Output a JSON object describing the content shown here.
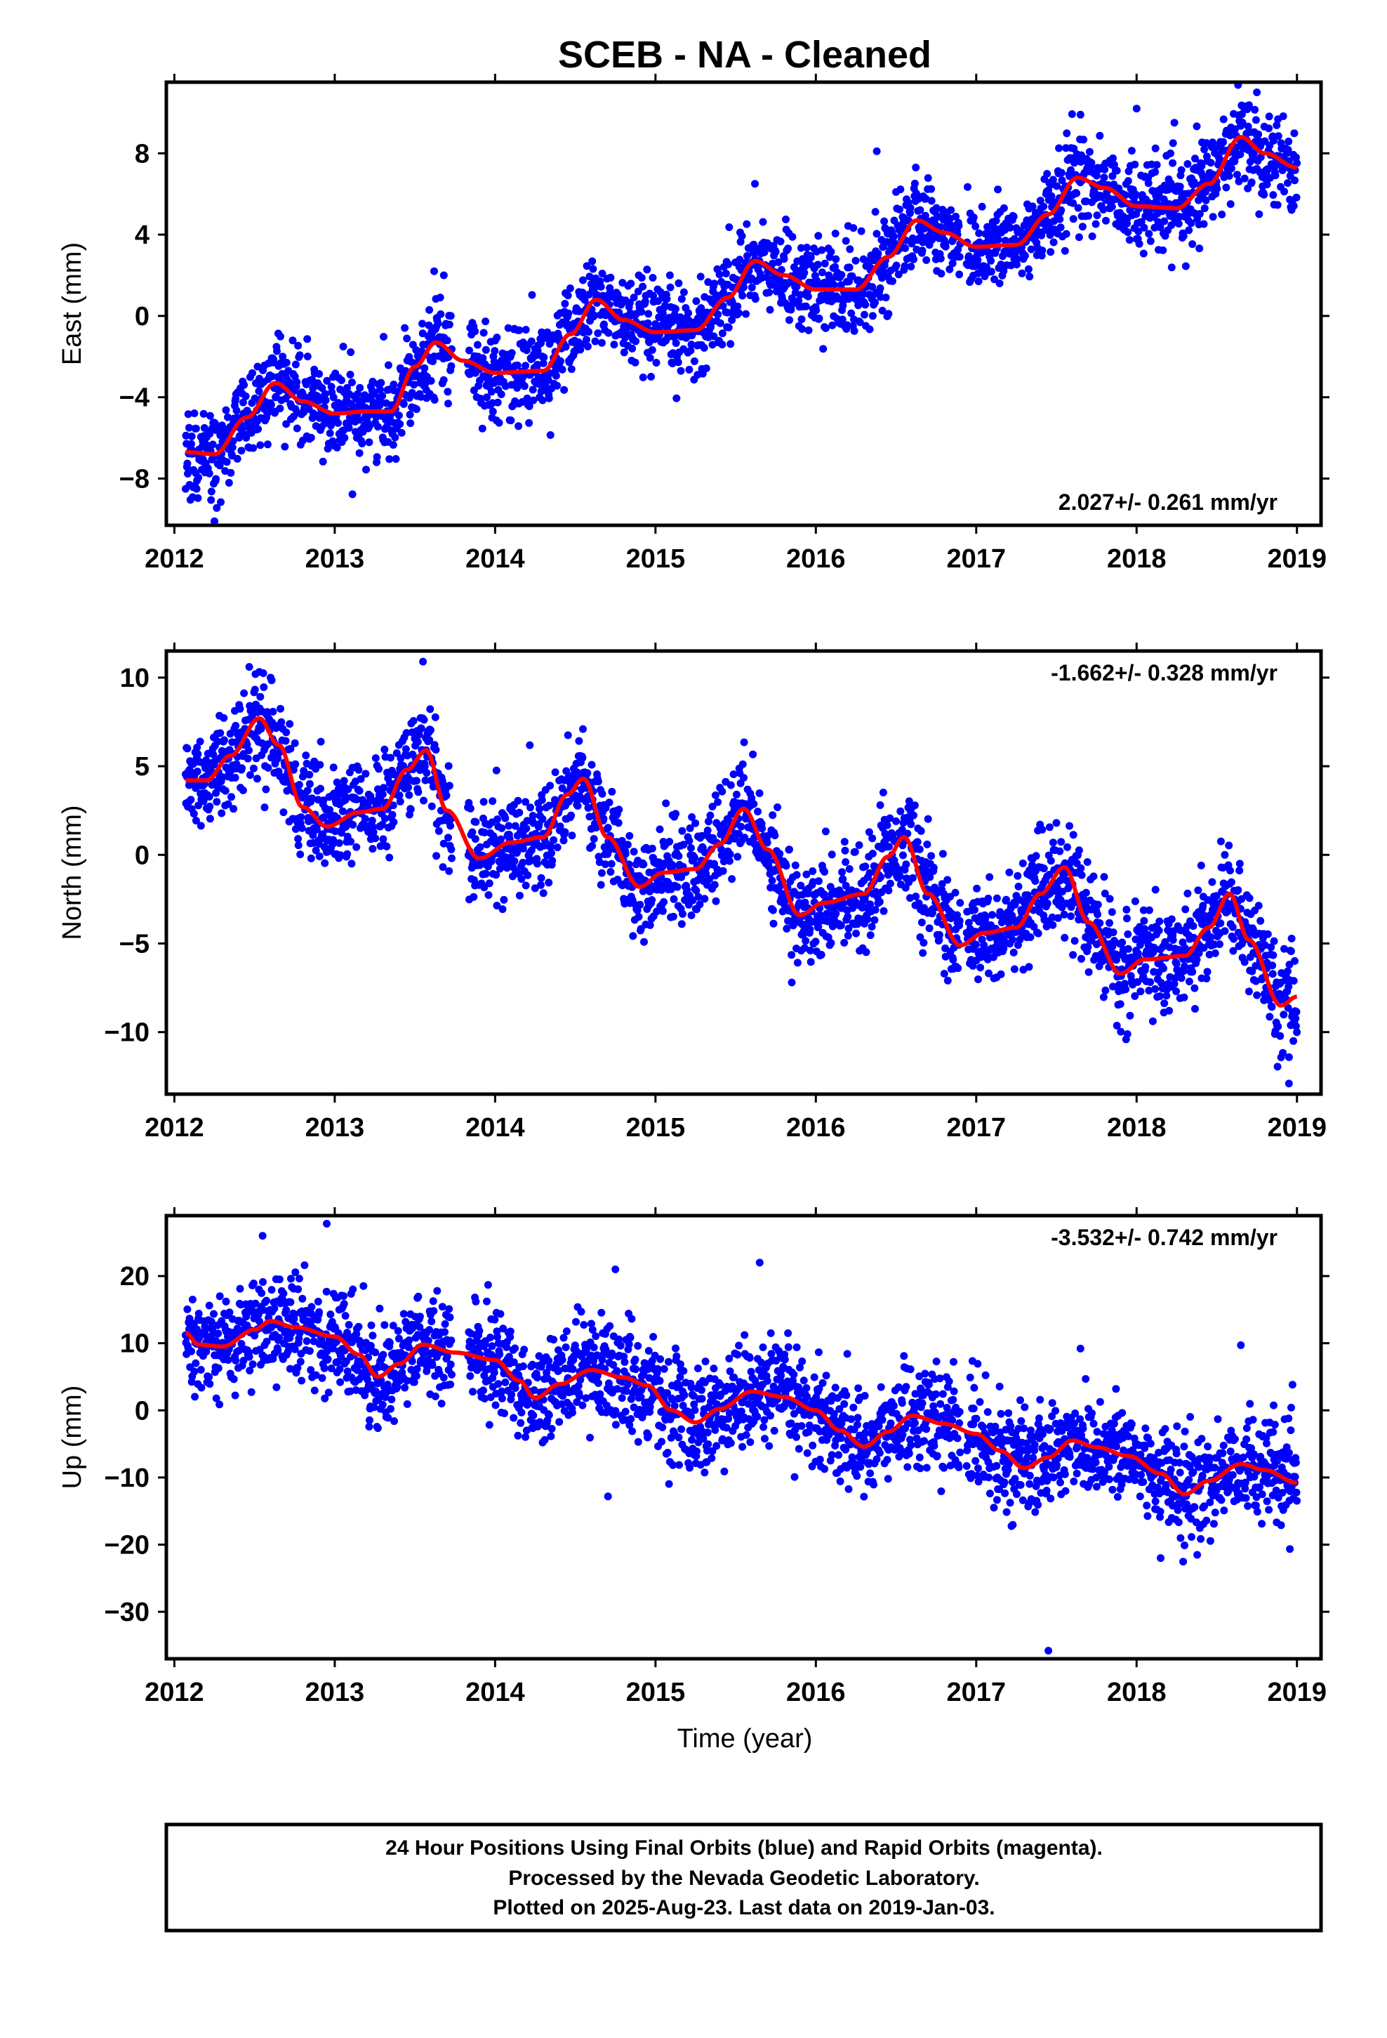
{
  "title": "SCEB  - NA - Cleaned",
  "xlabel": "Time (year)",
  "colors": {
    "final_orbits": "#0000ff",
    "rapid_orbits": "#ff00ff",
    "model": "#ff0000",
    "frame": "#000000"
  },
  "footer": {
    "line1": "24 Hour Positions Using Final Orbits (blue) and Rapid Orbits (magenta).",
    "line2": "Processed by the Nevada Geodetic Laboratory.",
    "line3": "Plotted on 2025-Aug-23. Last data on 2019-Jan-03."
  },
  "chart_data": [
    {
      "type": "scatter",
      "ylabel": "East (mm)",
      "rate": "2.027+/- 0.261 mm/yr",
      "xlim": [
        2011.95,
        2019.15
      ],
      "ylim": [
        -10.3,
        11.5
      ],
      "xticks": [
        2012,
        2013,
        2014,
        2015,
        2016,
        2017,
        2018,
        2019
      ],
      "yticks": [
        -8,
        -4,
        0,
        4,
        8
      ],
      "grid": false,
      "scatter_spread": 1.1,
      "outliers": [
        [
          2012.25,
          -10.1
        ],
        [
          2013.62,
          2.2
        ],
        [
          2013.68,
          2.0
        ],
        [
          2017.65,
          9.9
        ],
        [
          2018.0,
          10.2
        ],
        [
          2018.75,
          11.0
        ],
        [
          2015.62,
          6.5
        ],
        [
          2016.38,
          8.1
        ]
      ],
      "model": {
        "x": [
          2012.07,
          2012.25,
          2012.45,
          2012.63,
          2012.8,
          2013.0,
          2013.2,
          2013.35,
          2013.5,
          2013.63,
          2013.8,
          2014.0,
          2014.3,
          2014.47,
          2014.63,
          2014.8,
          2015.0,
          2015.25,
          2015.45,
          2015.62,
          2015.8,
          2016.0,
          2016.25,
          2016.45,
          2016.63,
          2016.8,
          2017.0,
          2017.25,
          2017.45,
          2017.63,
          2017.8,
          2018.0,
          2018.25,
          2018.45,
          2018.65,
          2018.8,
          2019.0
        ],
        "y": [
          -6.7,
          -6.8,
          -5.0,
          -3.3,
          -4.2,
          -4.8,
          -4.7,
          -4.7,
          -2.5,
          -1.3,
          -2.2,
          -2.8,
          -2.7,
          -0.9,
          0.8,
          -0.2,
          -0.8,
          -0.7,
          0.9,
          2.7,
          2.0,
          1.3,
          1.3,
          2.9,
          4.7,
          4.1,
          3.4,
          3.5,
          5.0,
          6.8,
          6.3,
          5.4,
          5.3,
          6.5,
          8.8,
          8.0,
          7.3
        ]
      }
    },
    {
      "type": "scatter",
      "ylabel": "North (mm)",
      "rate": "-1.662+/- 0.328 mm/yr",
      "xlim": [
        2011.95,
        2019.15
      ],
      "ylim": [
        -13.5,
        11.5
      ],
      "xticks": [
        2012,
        2013,
        2014,
        2015,
        2016,
        2017,
        2018,
        2019
      ],
      "yticks": [
        -10,
        -5,
        0,
        5,
        10
      ],
      "grid": false,
      "scatter_spread": 1.4,
      "outliers": [
        [
          2013.55,
          10.9
        ],
        [
          2012.6,
          10.0
        ],
        [
          2018.95,
          -12.9
        ],
        [
          2015.85,
          -7.2
        ],
        [
          2017.5,
          1.8
        ],
        [
          2018.55,
          0.0
        ]
      ],
      "model": {
        "x": [
          2012.07,
          2012.2,
          2012.35,
          2012.53,
          2012.65,
          2012.8,
          2012.95,
          2013.15,
          2013.3,
          2013.45,
          2013.57,
          2013.7,
          2013.9,
          2014.1,
          2014.3,
          2014.45,
          2014.55,
          2014.7,
          2014.9,
          2015.05,
          2015.25,
          2015.4,
          2015.55,
          2015.7,
          2015.9,
          2016.05,
          2016.3,
          2016.45,
          2016.55,
          2016.7,
          2016.9,
          2017.05,
          2017.25,
          2017.4,
          2017.55,
          2017.7,
          2017.9,
          2018.05,
          2018.3,
          2018.45,
          2018.58,
          2018.7,
          2018.9,
          2019.0
        ],
        "y": [
          4.2,
          4.2,
          5.6,
          7.7,
          6.2,
          2.7,
          1.6,
          2.4,
          2.6,
          4.8,
          5.9,
          2.5,
          -0.2,
          0.7,
          1.0,
          3.4,
          4.3,
          1.0,
          -1.8,
          -1.0,
          -0.8,
          0.6,
          2.6,
          0.3,
          -3.4,
          -2.7,
          -2.2,
          -0.1,
          1.0,
          -2.2,
          -5.1,
          -4.4,
          -4.1,
          -2.2,
          -0.7,
          -3.8,
          -6.7,
          -5.9,
          -5.7,
          -4.1,
          -2.2,
          -4.8,
          -8.5,
          -8.0
        ]
      }
    },
    {
      "type": "scatter",
      "ylabel": "Up (mm)",
      "rate": "-3.532+/- 0.742 mm/yr",
      "xlim": [
        2011.95,
        2019.15
      ],
      "ylim": [
        -37,
        29
      ],
      "xticks": [
        2012,
        2013,
        2014,
        2015,
        2016,
        2017,
        2018,
        2019
      ],
      "yticks": [
        -30,
        -20,
        -10,
        0,
        10,
        20
      ],
      "grid": false,
      "scatter_spread": 3.8,
      "outliers": [
        [
          2017.45,
          -35.8
        ],
        [
          2012.95,
          27.8
        ],
        [
          2012.55,
          26.0
        ],
        [
          2015.65,
          22.0
        ],
        [
          2014.75,
          21.0
        ],
        [
          2017.65,
          9.2
        ],
        [
          2018.65,
          9.7
        ],
        [
          2018.15,
          -22.0
        ]
      ],
      "model": {
        "x": [
          2012.07,
          2012.15,
          2012.3,
          2012.5,
          2012.6,
          2012.75,
          2013.0,
          2013.15,
          2013.27,
          2013.4,
          2013.55,
          2013.75,
          2014.0,
          2014.15,
          2014.25,
          2014.4,
          2014.6,
          2014.8,
          2014.95,
          2015.1,
          2015.25,
          2015.4,
          2015.6,
          2015.8,
          2016.0,
          2016.15,
          2016.3,
          2016.45,
          2016.6,
          2016.8,
          2017.0,
          2017.15,
          2017.3,
          2017.45,
          2017.6,
          2017.75,
          2017.95,
          2018.15,
          2018.3,
          2018.45,
          2018.65,
          2018.8,
          2019.0
        ],
        "y": [
          11.5,
          9.8,
          9.5,
          12.0,
          13.3,
          12.4,
          11.0,
          8.3,
          5.0,
          6.9,
          9.8,
          8.6,
          7.5,
          4.4,
          1.8,
          3.9,
          6.0,
          4.9,
          3.7,
          0.0,
          -1.8,
          0.2,
          2.8,
          2.0,
          0.0,
          -3.0,
          -5.4,
          -3.2,
          -0.8,
          -2.0,
          -3.5,
          -6.0,
          -8.6,
          -7.0,
          -4.5,
          -5.5,
          -6.8,
          -9.4,
          -12.5,
          -10.5,
          -8.0,
          -8.9,
          -10.8
        ]
      }
    }
  ]
}
